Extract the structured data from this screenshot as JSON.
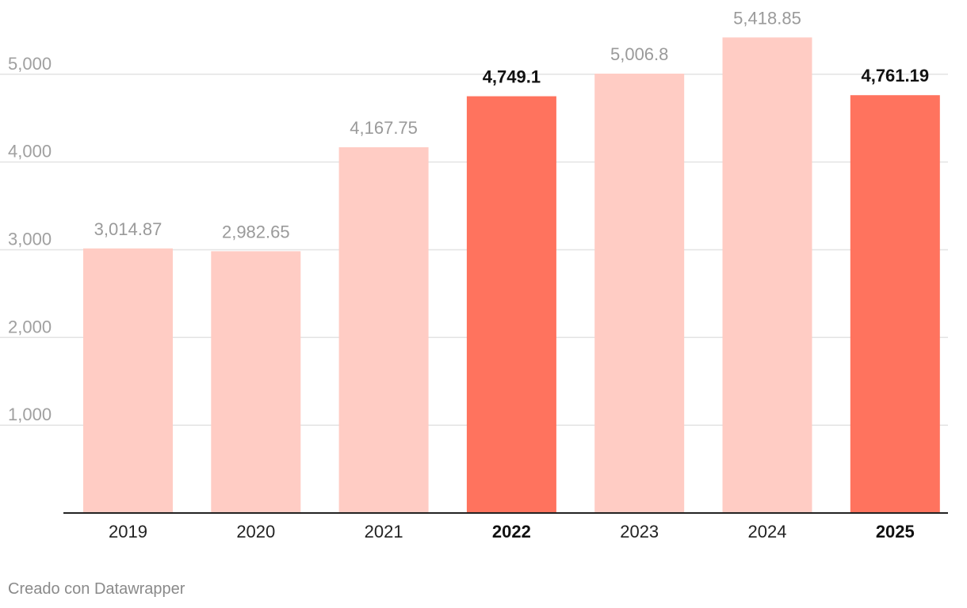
{
  "chart_data": {
    "type": "bar",
    "categories": [
      "2019",
      "2020",
      "2021",
      "2022",
      "2023",
      "2024",
      "2025"
    ],
    "values": [
      3014.87,
      2982.65,
      4167.75,
      4749.1,
      5006.8,
      5418.85,
      4761.19
    ],
    "value_labels": [
      "3,014.87",
      "2,982.65",
      "4,167.75",
      "4,749.1",
      "5,006.8",
      "5,418.85",
      "4,761.19"
    ],
    "highlighted": [
      false,
      false,
      false,
      true,
      false,
      false,
      true
    ],
    "y_ticks": [
      1000,
      2000,
      3000,
      4000,
      5000
    ],
    "y_tick_labels": [
      "1,000",
      "2,000",
      "3,000",
      "4,000",
      "5,000"
    ],
    "ylim": [
      0,
      5418.85
    ],
    "grid": true,
    "colors": {
      "bar": "#ffccc4",
      "bar_highlight": "#ff735e",
      "grid": "#e3e3e3",
      "baseline": "#222222"
    }
  },
  "footer": {
    "credit": "Creado con Datawrapper"
  }
}
